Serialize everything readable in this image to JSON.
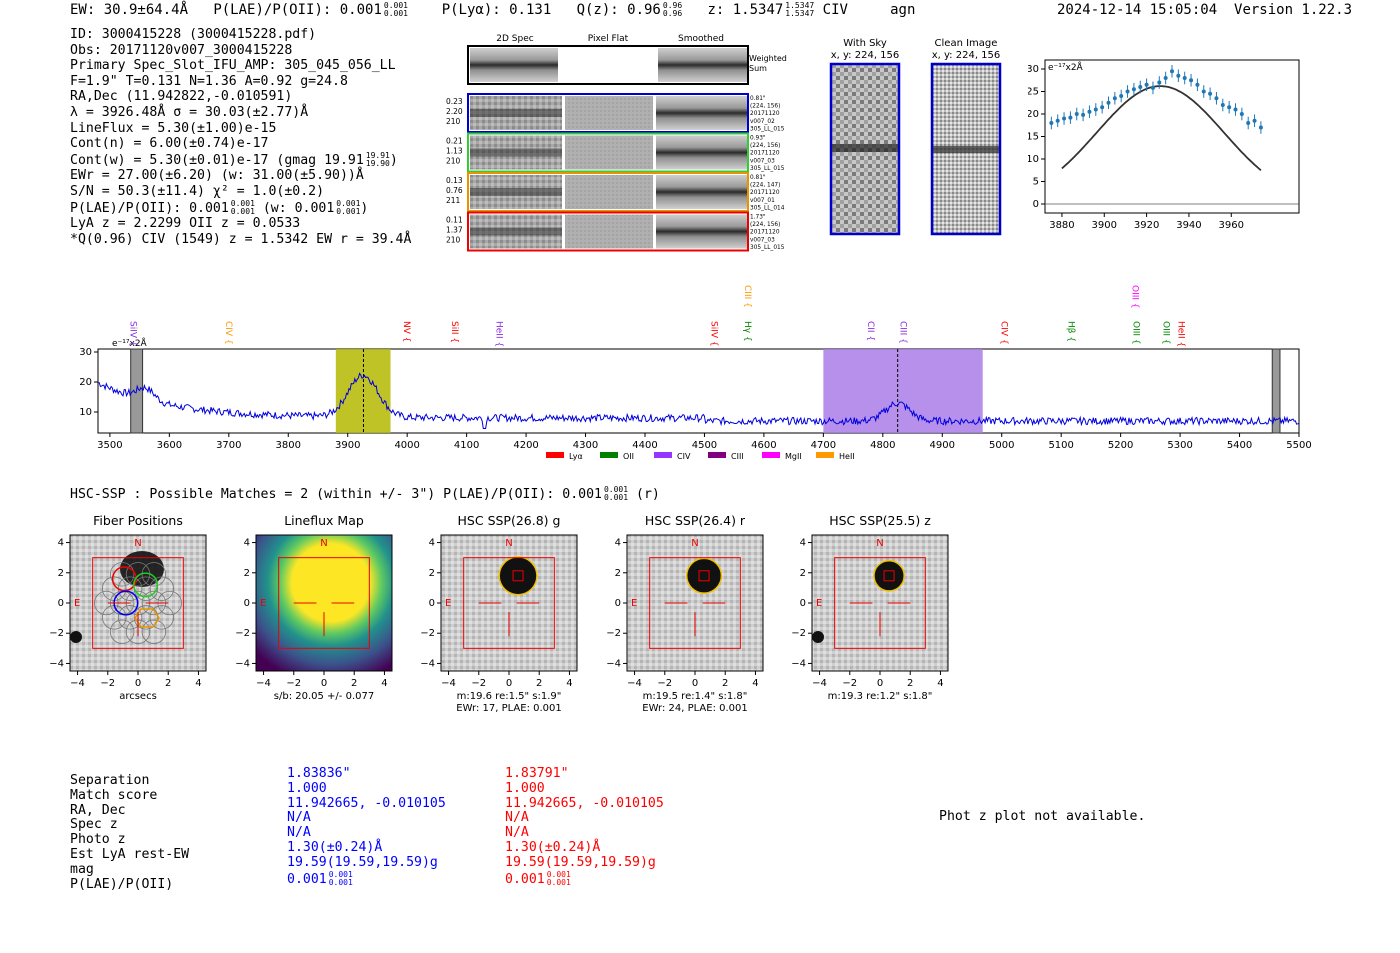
{
  "header": {
    "ew": "EW: 30.9±64.4Å",
    "plae": "P(LAE)/P(OII): 0.001",
    "plae_hi": "0.001",
    "plae_lo": "0.001",
    "plya": "P(Lyα): 0.131",
    "qz": "Q(z): 0.96",
    "qz_hi": "0.96",
    "qz_lo": "0.96",
    "z": "z: 1.5347",
    "z_hi": "1.5347",
    "z_lo": "1.5347",
    "line": "CIV",
    "cls": "agn",
    "timestamp": "2024-12-14 15:05:04",
    "version": "Version 1.22.3"
  },
  "info": {
    "l1": "ID: 3000415228 (3000415228.pdf)",
    "l2": "Obs: 20171120v007_3000415228",
    "l3": "Primary Spec_Slot_IFU_AMP: 305_045_056_LL",
    "l4": "F=1.9\"  T=0.131  N=1.36  A=0.92  g=24.8",
    "l5": "RA,Dec (11.942822,-0.010591)",
    "l6": "λ = 3926.48Å  σ = 30.03(±2.77)Å",
    "l7": "LineFlux = 5.30(±1.00)e-15",
    "l8": "Cont(n) = 6.00(±0.74)e-17",
    "l9": "Cont(w) = 5.30(±0.01)e-17 (gmag 19.91",
    "l9_hi": "19.91",
    "l9_lo": "19.90",
    "l9_end": ")",
    "l10": "EWr = 27.00(±6.20) (w: 31.00(±5.90))Å",
    "l11": "S/N = 50.3(±11.4)  χ² = 1.0(±0.2)",
    "l12": "P(LAE)/P(OII): 0.001",
    "l12_hi": "0.001",
    "l12_lo": "0.001",
    "l12_mid": " (w: 0.001",
    "l12_hi2": "0.001",
    "l12_lo2": "0.001",
    "l12_end": ")",
    "l13": "LyA z = 2.2299  OII z = 0.0533",
    "l14": "*Q(0.96) CIV (1549) z = 1.5342  EW r = 39.4Å"
  },
  "cutouts": {
    "col_headers": [
      "2D Spec",
      "Pixel Flat",
      "Smoothed"
    ],
    "weighted_label": [
      "Weighted",
      "Sum"
    ],
    "rows": [
      {
        "left": [
          "0.23",
          "2.20",
          "210"
        ],
        "right": [
          "0.81\"",
          "(224, 156)",
          "20171120",
          "v007_02",
          "305_LL_015"
        ],
        "color": "#0000cc"
      },
      {
        "left": [
          "0.21",
          "1.13",
          "210"
        ],
        "right": [
          "0.93\"",
          "(224, 156)",
          "20171120",
          "v007_03",
          "305_LL_015"
        ],
        "color": "#33cc33"
      },
      {
        "left": [
          "0.13",
          "0.76",
          "211"
        ],
        "right": [
          "0.81\"",
          "(224, 147)",
          "20171120",
          "v007_01",
          "305_LL_014"
        ],
        "color": "#e69500"
      },
      {
        "left": [
          "0.11",
          "1.37",
          "210"
        ],
        "right": [
          "1.73\"",
          "(224, 156)",
          "20171120",
          "v007_03",
          "305_LL_015"
        ],
        "color": "#ee0000"
      }
    ]
  },
  "sky": {
    "with_sky_title": "With Sky",
    "with_sky_coords": "x, y: 224, 156",
    "clean_title": "Clean Image",
    "clean_coords": "x, y: 224, 156"
  },
  "chart_data": [
    {
      "type": "scatter",
      "name": "line-fit",
      "title": "",
      "unit_label": "e⁻¹⁷x2Å",
      "xlim": [
        3872,
        3992
      ],
      "ylim": [
        -2,
        32
      ],
      "xticks": [
        3880,
        3900,
        3920,
        3940,
        3960
      ],
      "yticks": [
        0,
        5,
        10,
        15,
        20,
        25,
        30
      ],
      "points_x": [
        3875,
        3878,
        3881,
        3884,
        3887,
        3890,
        3893,
        3896,
        3899,
        3902,
        3905,
        3908,
        3911,
        3914,
        3917,
        3920,
        3923,
        3926,
        3929,
        3932,
        3935,
        3938,
        3941,
        3944,
        3947,
        3950,
        3953,
        3956,
        3959,
        3962,
        3965,
        3968,
        3971,
        3974
      ],
      "points_y": [
        18,
        18.5,
        19,
        19.2,
        20,
        19.8,
        20.5,
        21,
        21.5,
        22.5,
        23.5,
        24,
        25,
        25.5,
        26,
        26.5,
        25.8,
        27,
        28,
        29.5,
        28.5,
        28,
        27.5,
        26.5,
        25,
        24.5,
        23.5,
        22,
        21.5,
        21,
        20,
        18,
        18.5,
        17
      ],
      "fit_amplitude": 26.2,
      "fit_center": 3926.48,
      "fit_sigma": 30.03
    },
    {
      "type": "line",
      "name": "full-spectrum",
      "unit_label": "e⁻¹⁷x2Å",
      "xlim": [
        3480,
        5500
      ],
      "ylim": [
        3,
        31
      ],
      "xticks": [
        3500,
        3600,
        3700,
        3800,
        3900,
        4000,
        4100,
        4200,
        4300,
        4400,
        4500,
        4600,
        4700,
        4800,
        4900,
        5000,
        5100,
        5200,
        5300,
        5400,
        5500
      ],
      "yticks": [
        10,
        20,
        30
      ],
      "regions": [
        {
          "label": "Lyα region",
          "x0": 3880,
          "x1": 3972,
          "color": "#b5b800"
        },
        {
          "label": "CIV region",
          "x0": 4700,
          "x1": 4968,
          "color": "#a97de6"
        }
      ],
      "masked": [
        {
          "x0": 3535,
          "x1": 3555
        },
        {
          "x0": 5455,
          "x1": 5468
        }
      ],
      "markers": [
        3926.5,
        4825
      ],
      "emission_lines": [
        {
          "label": "SiIV",
          "x": 3535,
          "color": "#8a2be2",
          "tier": 1
        },
        {
          "label": "CIV",
          "x": 3695,
          "color": "#ff9900",
          "tier": 1
        },
        {
          "label": "NV",
          "x": 3995,
          "color": "#ff0000",
          "tier": 1
        },
        {
          "label": "SiII",
          "x": 4075,
          "color": "#ff0000",
          "tier": 1
        },
        {
          "label": "HeII",
          "x": 4150,
          "color": "#8a2be2",
          "tier": 1
        },
        {
          "label": "SiIV",
          "x": 4512,
          "color": "#ff0000",
          "tier": 1
        },
        {
          "label": "CIII",
          "x": 4568,
          "color": "#ff9900",
          "tier": 0
        },
        {
          "label": "Hγ",
          "x": 4568,
          "color": "#008800",
          "tier": 1
        },
        {
          "label": "CII",
          "x": 4775,
          "color": "#8a2be2",
          "tier": 1
        },
        {
          "label": "CIII",
          "x": 4830,
          "color": "#8a2be2",
          "tier": 1
        },
        {
          "label": "CIV",
          "x": 5000,
          "color": "#ff0000",
          "tier": 1
        },
        {
          "label": "Hβ",
          "x": 5112,
          "color": "#008800",
          "tier": 1
        },
        {
          "label": "OIII",
          "x": 5220,
          "color": "#ff00ff",
          "tier": 0
        },
        {
          "label": "OIII",
          "x": 5222,
          "color": "#008800",
          "tier": 1
        },
        {
          "label": "OIII",
          "x": 5272,
          "color": "#008800",
          "tier": 1
        },
        {
          "label": "HeII",
          "x": 5297,
          "color": "#ff0000",
          "tier": 1
        }
      ],
      "legend": [
        {
          "label": "Lyα",
          "color": "#ff0000"
        },
        {
          "label": "OII",
          "color": "#008000"
        },
        {
          "label": "CIV",
          "color": "#9933ff"
        },
        {
          "label": "CIII",
          "color": "#800080"
        },
        {
          "label": "MgII",
          "color": "#ff00ff"
        },
        {
          "label": "HeII",
          "color": "#ff9900"
        }
      ]
    }
  ],
  "hsc": {
    "summary": "HSC-SSP : Possible Matches = 2 (within +/- 3\")  P(LAE)/P(OII): 0.001",
    "summary_hi": "0.001",
    "summary_lo": "0.001",
    "summary_end": "(r)",
    "panels": [
      {
        "title": "Fiber Positions",
        "caption1": "arcsecs",
        "caption2": ""
      },
      {
        "title": "Lineflux Map",
        "caption1": "s/b: 20.05 +/- 0.077",
        "caption2": ""
      },
      {
        "title": "HSC SSP(26.8) g",
        "caption1": "m:19.6  re:1.5\"  s:1.9\"",
        "caption2": "EWr: 17, PLAE: 0.001"
      },
      {
        "title": "HSC SSP(26.4) r",
        "caption1": "m:19.5  re:1.4\"  s:1.8\"",
        "caption2": "EWr: 24, PLAE: 0.001"
      },
      {
        "title": "HSC SSP(25.5) z",
        "caption1": "m:19.3  re:1.2\"  s:1.8\"",
        "caption2": ""
      }
    ],
    "ticks": [
      "−4",
      "−2",
      "0",
      "2",
      "4"
    ],
    "north": "N",
    "east": "E"
  },
  "matches": {
    "labels": [
      "Separation",
      "Match score",
      "RA, Dec",
      "Spec z",
      "Photo z",
      "Est LyA rest-EW",
      "mag",
      "P(LAE)/P(OII)"
    ],
    "col1": [
      "1.83836\"",
      "1.000",
      "11.942665, -0.010105",
      "N/A",
      "N/A",
      "1.30(±0.24)Å",
      "19.59(19.59,19.59)g",
      "0.001"
    ],
    "col1_frac": [
      "0.001",
      "0.001"
    ],
    "col2": [
      "1.83791\"",
      "1.000",
      "11.942665, -0.010105",
      "N/A",
      "N/A",
      "1.30(±0.24)Å",
      "19.59(19.59,19.59)g",
      "0.001"
    ],
    "col2_frac": [
      "0.001",
      "0.001"
    ],
    "photz_note": "Phot z plot not available."
  }
}
